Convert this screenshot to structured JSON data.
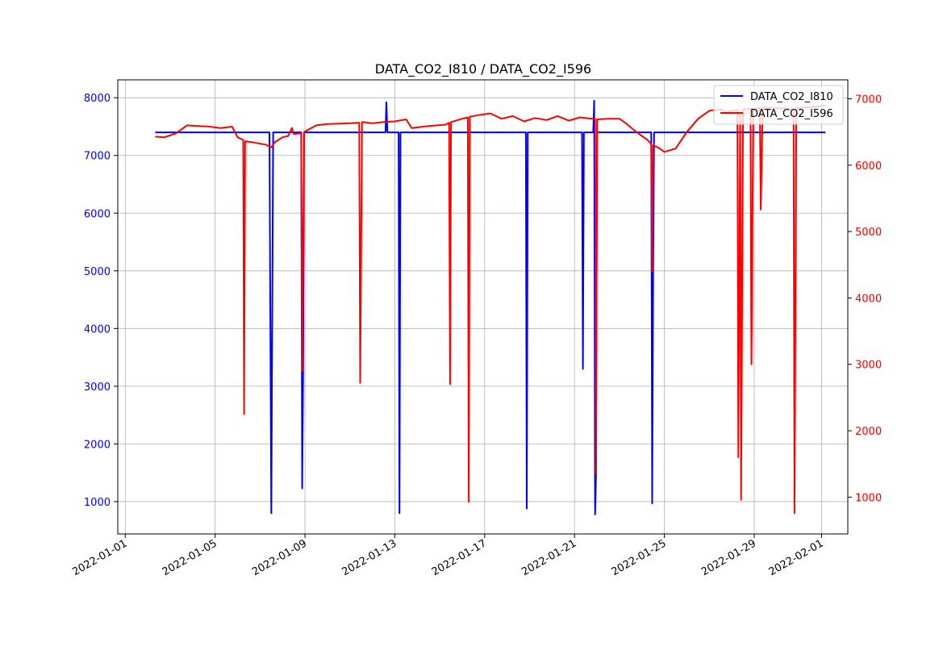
{
  "chart_data": {
    "type": "line",
    "title": "DATA_CO2_I810 / DATA_CO2_I596",
    "xlabel": "",
    "ylabel_left": "",
    "ylabel_right": "",
    "grid": true,
    "legend_position": "upper-right",
    "x_axis": {
      "type": "date",
      "range": [
        "2021-12-31T16:00",
        "2022-02-02T04:00"
      ],
      "ticks": [
        "2022-01-01",
        "2022-01-05",
        "2022-01-09",
        "2022-01-13",
        "2022-01-17",
        "2022-01-21",
        "2022-01-25",
        "2022-01-29",
        "2022-02-01"
      ]
    },
    "y_left": {
      "range": [
        440,
        8310
      ],
      "ticks": [
        1000,
        2000,
        3000,
        4000,
        5000,
        6000,
        7000,
        8000
      ],
      "color": "#0000ff"
    },
    "y_right": {
      "range": [
        446,
        7285
      ],
      "ticks": [
        1000,
        2000,
        3000,
        4000,
        5000,
        6000,
        7000
      ],
      "color": "#ff0000"
    },
    "series": [
      {
        "name": "DATA_CO2_I810",
        "axis": "left",
        "color": "#0000ff",
        "points": [
          [
            "2022-01-02T08:00",
            7400
          ],
          [
            "2022-01-07T10:00",
            7400
          ],
          [
            "2022-01-07T12:00",
            800
          ],
          [
            "2022-01-07T14:00",
            7400
          ],
          [
            "2022-01-08T20:00",
            7400
          ],
          [
            "2022-01-08T21:00",
            1230
          ],
          [
            "2022-01-08T22:00",
            3200
          ],
          [
            "2022-01-08T23:00",
            7400
          ],
          [
            "2022-01-12T14:00",
            7400
          ],
          [
            "2022-01-12T15:00",
            7920
          ],
          [
            "2022-01-12T16:00",
            7400
          ],
          [
            "2022-01-13T04:00",
            7400
          ],
          [
            "2022-01-13T05:00",
            800
          ],
          [
            "2022-01-13T06:00",
            7400
          ],
          [
            "2022-01-18T20:00",
            7400
          ],
          [
            "2022-01-18T21:00",
            880
          ],
          [
            "2022-01-18T22:00",
            7400
          ],
          [
            "2022-01-21T08:00",
            7400
          ],
          [
            "2022-01-21T09:00",
            3300
          ],
          [
            "2022-01-21T10:00",
            7400
          ],
          [
            "2022-01-21T20:00",
            7400
          ],
          [
            "2022-01-21T21:00",
            7950
          ],
          [
            "2022-01-21T22:00",
            780
          ],
          [
            "2022-01-21T23:00",
            1500
          ],
          [
            "2022-01-22T00:00",
            7400
          ],
          [
            "2022-01-24T10:00",
            7400
          ],
          [
            "2022-01-24T11:00",
            970
          ],
          [
            "2022-01-24T12:00",
            5100
          ],
          [
            "2022-01-24T13:00",
            7400
          ],
          [
            "2022-01-29T08:00",
            7400
          ],
          [
            "2022-01-29T09:00",
            7380
          ],
          [
            "2022-01-29T10:00",
            7400
          ],
          [
            "2022-02-01T04:00",
            7400
          ]
        ]
      },
      {
        "name": "DATA_CO2_I596",
        "axis": "right",
        "color": "#ff0000",
        "points": [
          [
            "2022-01-02T08:00",
            6430
          ],
          [
            "2022-01-02T18:00",
            6420
          ],
          [
            "2022-01-03T06:00",
            6480
          ],
          [
            "2022-01-03T18:00",
            6600
          ],
          [
            "2022-01-04T06:00",
            6590
          ],
          [
            "2022-01-04T18:00",
            6580
          ],
          [
            "2022-01-05T06:00",
            6560
          ],
          [
            "2022-01-05T18:00",
            6580
          ],
          [
            "2022-01-06T00:00",
            6420
          ],
          [
            "2022-01-06T06:00",
            6380
          ],
          [
            "2022-01-06T07:00",
            2250
          ],
          [
            "2022-01-06T08:00",
            6360
          ],
          [
            "2022-01-06T18:00",
            6340
          ],
          [
            "2022-01-07T06:00",
            6310
          ],
          [
            "2022-01-07T12:00",
            6270
          ],
          [
            "2022-01-07T16:00",
            6350
          ],
          [
            "2022-01-08T00:00",
            6420
          ],
          [
            "2022-01-08T06:00",
            6440
          ],
          [
            "2022-01-08T10:00",
            6560
          ],
          [
            "2022-01-08T12:00",
            6470
          ],
          [
            "2022-01-08T20:00",
            6480
          ],
          [
            "2022-01-08T21:00",
            2900
          ],
          [
            "2022-01-08T23:00",
            6500
          ],
          [
            "2022-01-09T12:00",
            6600
          ],
          [
            "2022-01-10T00:00",
            6620
          ],
          [
            "2022-01-11T00:00",
            6630
          ],
          [
            "2022-01-11T10:00",
            6640
          ],
          [
            "2022-01-11T11:00",
            2720
          ],
          [
            "2022-01-11T13:00",
            6650
          ],
          [
            "2022-01-12T00:00",
            6630
          ],
          [
            "2022-01-12T12:00",
            6650
          ],
          [
            "2022-01-13T00:00",
            6660
          ],
          [
            "2022-01-13T12:00",
            6690
          ],
          [
            "2022-01-13T18:00",
            6560
          ],
          [
            "2022-01-14T12:00",
            6590
          ],
          [
            "2022-01-15T06:00",
            6610
          ],
          [
            "2022-01-15T10:00",
            6640
          ],
          [
            "2022-01-15T11:00",
            2700
          ],
          [
            "2022-01-15T12:00",
            6650
          ],
          [
            "2022-01-16T00:00",
            6700
          ],
          [
            "2022-01-16T06:00",
            6720
          ],
          [
            "2022-01-16T07:00",
            930
          ],
          [
            "2022-01-16T08:00",
            6730
          ],
          [
            "2022-01-16T20:00",
            6760
          ],
          [
            "2022-01-17T06:00",
            6780
          ],
          [
            "2022-01-17T18:00",
            6700
          ],
          [
            "2022-01-18T06:00",
            6740
          ],
          [
            "2022-01-18T18:00",
            6660
          ],
          [
            "2022-01-19T06:00",
            6710
          ],
          [
            "2022-01-19T18:00",
            6680
          ],
          [
            "2022-01-20T06:00",
            6740
          ],
          [
            "2022-01-20T18:00",
            6670
          ],
          [
            "2022-01-21T06:00",
            6720
          ],
          [
            "2022-01-21T18:00",
            6700
          ],
          [
            "2022-01-21T22:00",
            6700
          ],
          [
            "2022-01-21T23:00",
            1350
          ],
          [
            "2022-01-22T00:00",
            6690
          ],
          [
            "2022-01-22T12:00",
            6700
          ],
          [
            "2022-01-23T00:00",
            6700
          ],
          [
            "2022-01-23T06:00",
            6640
          ],
          [
            "2022-01-23T18:00",
            6500
          ],
          [
            "2022-01-24T06:00",
            6380
          ],
          [
            "2022-01-24T10:00",
            6320
          ],
          [
            "2022-01-24T11:00",
            4400
          ],
          [
            "2022-01-24T12:00",
            6300
          ],
          [
            "2022-01-24T18:00",
            6260
          ],
          [
            "2022-01-25T00:00",
            6200
          ],
          [
            "2022-01-25T12:00",
            6250
          ],
          [
            "2022-01-26T00:00",
            6500
          ],
          [
            "2022-01-26T12:00",
            6700
          ],
          [
            "2022-01-27T00:00",
            6820
          ],
          [
            "2022-01-27T12:00",
            6840
          ],
          [
            "2022-01-27T18:00",
            6800
          ],
          [
            "2022-01-28T06:00",
            6830
          ],
          [
            "2022-01-28T07:00",
            1600
          ],
          [
            "2022-01-28T09:00",
            6820
          ],
          [
            "2022-01-28T10:00",
            960
          ],
          [
            "2022-01-28T12:00",
            6840
          ],
          [
            "2022-01-28T20:00",
            6850
          ],
          [
            "2022-01-28T21:00",
            3000
          ],
          [
            "2022-01-28T23:00",
            6850
          ],
          [
            "2022-01-29T06:00",
            6860
          ],
          [
            "2022-01-29T07:00",
            5330
          ],
          [
            "2022-01-29T09:00",
            6870
          ],
          [
            "2022-01-30T00:00",
            6860
          ],
          [
            "2022-01-30T12:00",
            6850
          ],
          [
            "2022-01-30T18:00",
            6840
          ],
          [
            "2022-01-30T19:00",
            760
          ],
          [
            "2022-01-30T21:00",
            6860
          ],
          [
            "2022-01-31T06:00",
            6870
          ],
          [
            "2022-01-31T18:00",
            6880
          ],
          [
            "2022-02-01T04:00",
            6900
          ]
        ]
      }
    ]
  }
}
